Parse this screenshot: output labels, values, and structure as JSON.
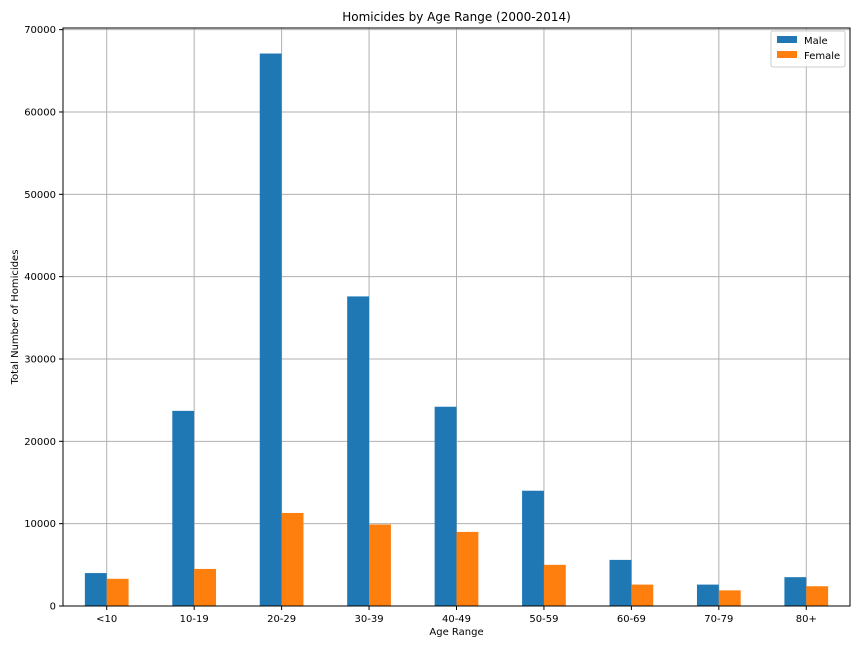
{
  "chart_data": {
    "type": "bar",
    "title": "Homicides by Age Range (2000-2014)",
    "xlabel": "Age Range",
    "ylabel": "Total Number of Homicides",
    "categories": [
      "<10",
      "10-19",
      "20-29",
      "30-39",
      "40-49",
      "50-59",
      "60-69",
      "70-79",
      "80+"
    ],
    "series": [
      {
        "name": "Male",
        "color": "#1f77b4",
        "values": [
          4000,
          23700,
          67100,
          37600,
          24200,
          14000,
          5600,
          2600,
          3500
        ]
      },
      {
        "name": "Female",
        "color": "#ff7f0e",
        "values": [
          3300,
          4500,
          11300,
          9900,
          9000,
          5000,
          2600,
          1900,
          2400
        ]
      }
    ],
    "ylim": [
      0,
      70200
    ],
    "yticks": [
      0,
      10000,
      20000,
      30000,
      40000,
      50000,
      60000,
      70000
    ],
    "grid": true,
    "legend_position": "top-right"
  }
}
